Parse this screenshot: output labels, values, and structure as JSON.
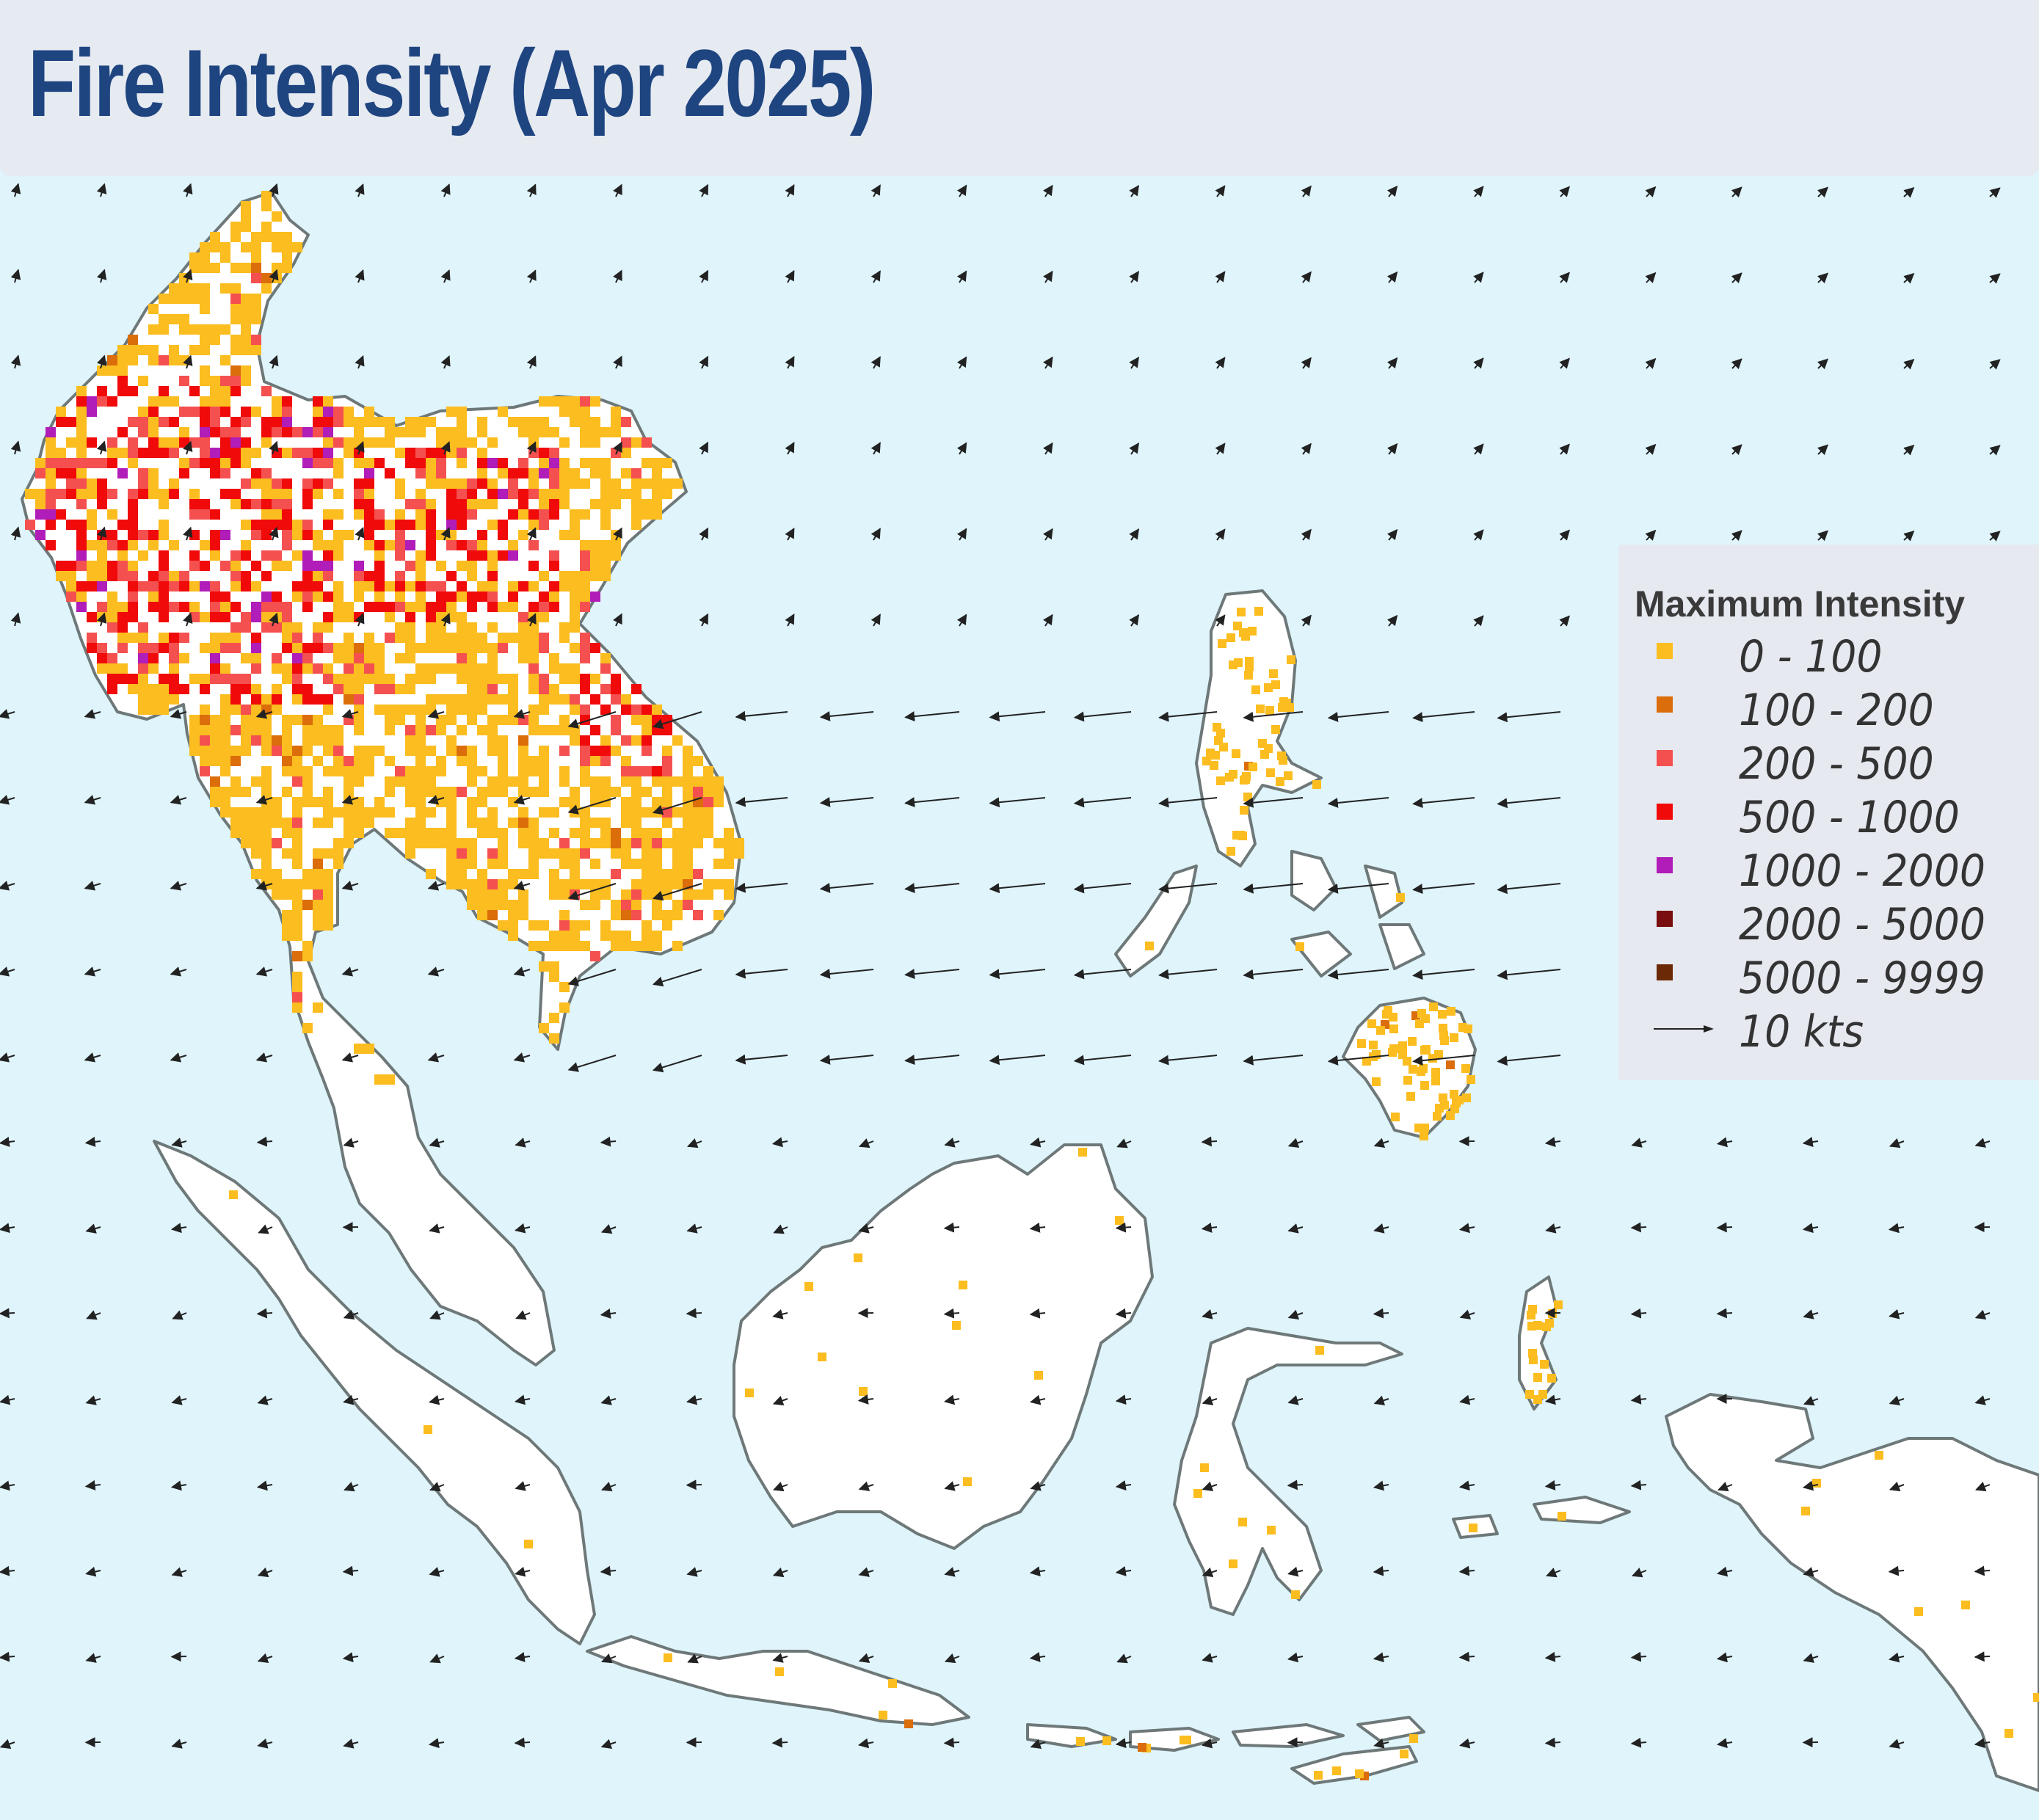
{
  "title": "Fire Intensity (Apr 2025)",
  "legend": {
    "title": "Maximum Intensity",
    "items": [
      {
        "label": "0 - 100",
        "color": "#fbbd1f"
      },
      {
        "label": "100 - 200",
        "color": "#db6d0a"
      },
      {
        "label": "200 - 500",
        "color": "#f55050"
      },
      {
        "label": "500 - 1000",
        "color": "#f00a0a"
      },
      {
        "label": "1000 - 2000",
        "color": "#b01db8"
      },
      {
        "label": "2000 - 5000",
        "color": "#7a0d0d"
      },
      {
        "label": "5000 - 9999",
        "color": "#6b2a05"
      }
    ],
    "wind_label": "10 kts"
  },
  "colors": {
    "ocean": "#dff4fb",
    "land": "#ffffff",
    "coast": "#6e7878",
    "title": "#1f4580",
    "arrow": "#222222"
  },
  "icons": {
    "wind": "wind-arrow-icon"
  }
}
